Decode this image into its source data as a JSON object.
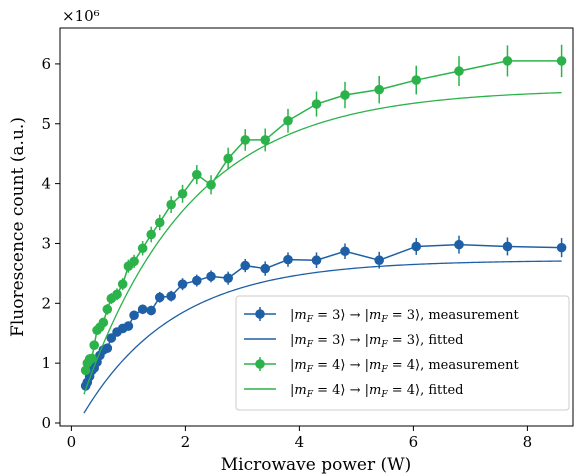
{
  "chart_data": {
    "type": "scatter",
    "xlabel": "Microwave power (W)",
    "ylabel": "Fluorescence count (a.u.)",
    "y_multiplier": "×10⁶",
    "xlim": [
      -0.2,
      8.8
    ],
    "ylim": [
      -0.05,
      6.6
    ],
    "x_ticks": [
      0,
      2,
      4,
      6,
      8
    ],
    "y_ticks": [
      0,
      1,
      2,
      3,
      4,
      5,
      6
    ],
    "grid": false,
    "legend_position": "lower-right",
    "colors": {
      "blue": "#1f5fa6",
      "green": "#2cb24a"
    },
    "series": [
      {
        "name": "|m_F = 3⟩ → |m_F = 3⟩, measurement",
        "kind": "errorbar",
        "color": "#1f5fa6",
        "x": [
          0.25,
          0.28,
          0.32,
          0.36,
          0.4,
          0.45,
          0.5,
          0.56,
          0.63,
          0.7,
          0.8,
          0.9,
          1.0,
          1.1,
          1.25,
          1.4,
          1.55,
          1.75,
          1.95,
          2.2,
          2.45,
          2.75,
          3.05,
          3.4,
          3.8,
          4.3,
          4.8,
          5.4,
          6.05,
          6.8,
          7.65,
          8.6
        ],
        "y": [
          0.62,
          0.68,
          0.78,
          0.88,
          0.92,
          1.02,
          1.13,
          1.22,
          1.25,
          1.42,
          1.52,
          1.58,
          1.62,
          1.8,
          1.9,
          1.88,
          2.1,
          2.12,
          2.32,
          2.38,
          2.45,
          2.42,
          2.63,
          2.58,
          2.73,
          2.72,
          2.87,
          2.72,
          2.95,
          2.98,
          2.95,
          2.93
        ],
        "err": [
          0.04,
          0.04,
          0.05,
          0.05,
          0.05,
          0.06,
          0.06,
          0.06,
          0.06,
          0.07,
          0.07,
          0.07,
          0.07,
          0.08,
          0.08,
          0.08,
          0.09,
          0.09,
          0.1,
          0.1,
          0.1,
          0.11,
          0.11,
          0.12,
          0.12,
          0.13,
          0.13,
          0.14,
          0.14,
          0.15,
          0.15,
          0.16
        ]
      },
      {
        "name": "|m_F = 3⟩ → |m_F = 3⟩, fitted",
        "kind": "line",
        "color": "#1f5fa6",
        "model": {
          "A": 2.72,
          "k": 0.62,
          "x0": 0.12
        }
      },
      {
        "name": "|m_F = 4⟩ → |m_F = 4⟩, measurement",
        "kind": "errorbar",
        "color": "#2cb24a",
        "x": [
          0.25,
          0.28,
          0.32,
          0.36,
          0.4,
          0.45,
          0.5,
          0.56,
          0.63,
          0.7,
          0.8,
          0.9,
          1.0,
          1.1,
          1.25,
          1.4,
          1.55,
          1.75,
          1.95,
          2.2,
          2.45,
          2.75,
          3.05,
          3.4,
          3.8,
          4.3,
          4.8,
          5.4,
          6.05,
          6.8,
          7.65,
          8.6
        ],
        "y": [
          0.88,
          1.0,
          1.07,
          1.08,
          1.3,
          1.55,
          1.6,
          1.68,
          1.9,
          2.08,
          2.15,
          2.32,
          2.62,
          2.7,
          2.92,
          3.15,
          3.35,
          3.65,
          3.83,
          4.15,
          3.98,
          4.42,
          4.73,
          4.73,
          5.05,
          5.33,
          5.48,
          5.57,
          5.73,
          5.88,
          6.05,
          6.05
        ],
        "err": [
          0.05,
          0.05,
          0.06,
          0.06,
          0.07,
          0.07,
          0.08,
          0.08,
          0.09,
          0.09,
          0.1,
          0.1,
          0.11,
          0.11,
          0.12,
          0.13,
          0.13,
          0.14,
          0.15,
          0.16,
          0.16,
          0.18,
          0.18,
          0.19,
          0.2,
          0.21,
          0.22,
          0.23,
          0.24,
          0.25,
          0.26,
          0.27
        ]
      },
      {
        "name": "|m_F = 4⟩ → |m_F = 4⟩, fitted",
        "kind": "line",
        "color": "#2cb24a",
        "model": {
          "A": 5.58,
          "k": 0.53,
          "x0": 0.05
        }
      }
    ]
  }
}
